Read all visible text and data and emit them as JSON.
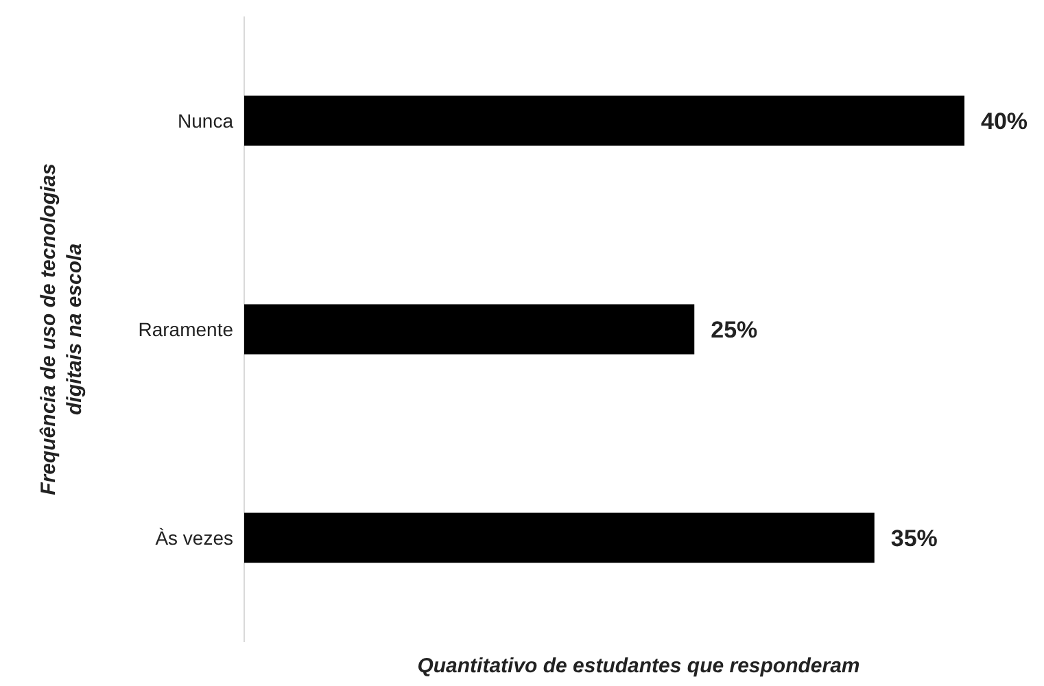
{
  "chart_data": {
    "type": "bar",
    "orientation": "horizontal",
    "categories": [
      "Nunca",
      "Raramente",
      "Às vezes"
    ],
    "values": [
      40,
      25,
      35
    ],
    "color": "#000000",
    "value_labels": [
      "40%",
      "25%",
      "35%"
    ],
    "xlabel": "Quantitativo de estudantes que responderam",
    "ylabel": "Frequência de uso de tecnologias\ndigitais na escola",
    "tick_labels": "y"
  }
}
